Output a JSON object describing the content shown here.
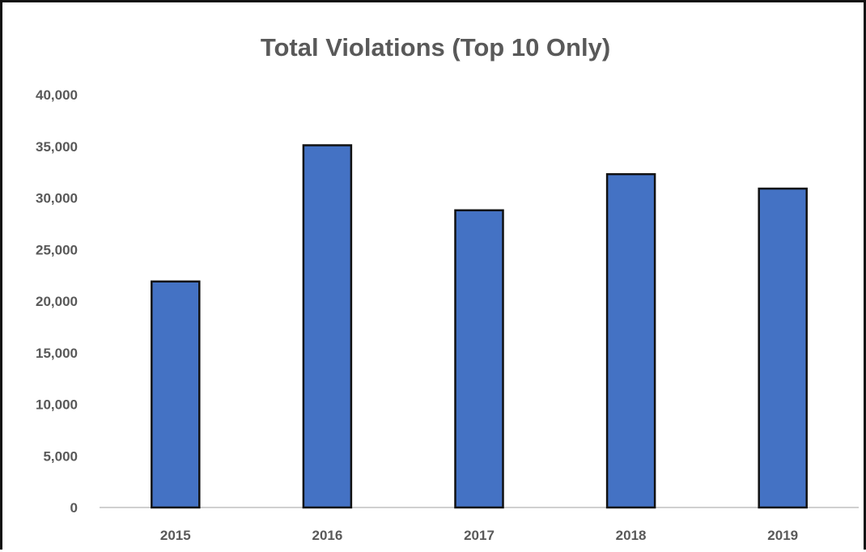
{
  "chart_data": {
    "type": "bar",
    "title": "Total Violations (Top 10 Only)",
    "categories": [
      "2015",
      "2016",
      "2017",
      "2018",
      "2019"
    ],
    "values": [
      21900,
      35100,
      28800,
      32300,
      30900
    ],
    "ylim": [
      0,
      40000
    ],
    "yticks": [
      0,
      5000,
      10000,
      15000,
      20000,
      25000,
      30000,
      35000,
      40000
    ],
    "ytick_labels": [
      "0",
      "5,000",
      "10,000",
      "15,000",
      "20,000",
      "25,000",
      "30,000",
      "35,000",
      "40,000"
    ],
    "xlabel": "",
    "ylabel": "",
    "grid": false,
    "legend": "none",
    "bar_color": "#4472C4",
    "bar_edge_color": "#111111"
  }
}
